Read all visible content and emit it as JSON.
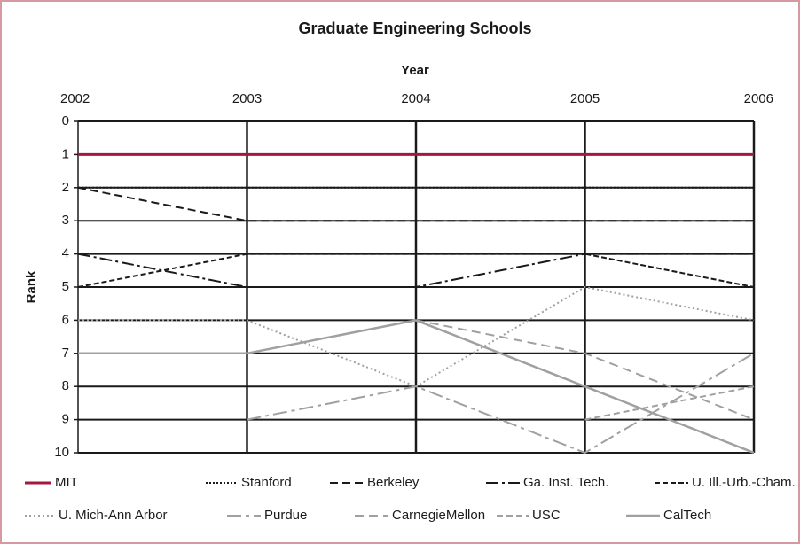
{
  "chart_data": {
    "type": "line",
    "title": "Graduate Engineering Schools",
    "x_label": "Year",
    "y_label": "Rank",
    "x": [
      2002,
      2003,
      2004,
      2005,
      2006
    ],
    "xlim": [
      2002,
      2006
    ],
    "xticks": [
      2002,
      2003,
      2004,
      2005,
      2006
    ],
    "ylim": [
      0,
      10
    ],
    "yticks": [
      0,
      1,
      2,
      3,
      4,
      5,
      6,
      7,
      8,
      9,
      10
    ],
    "y_inverted": true,
    "grid": true,
    "legend": "bottom",
    "series": [
      {
        "name": "MIT",
        "color": "#a3183c",
        "values": [
          1,
          1,
          1,
          1,
          1
        ]
      },
      {
        "name": "Stanford",
        "color": "#1a1a1a",
        "values": [
          2,
          2,
          2,
          2,
          2
        ]
      },
      {
        "name": "Berkeley",
        "color": "#1a1a1a",
        "values": [
          2,
          3,
          3,
          3,
          3
        ]
      },
      {
        "name": "Ga. Inst. Tech.",
        "color": "#1a1a1a",
        "values": [
          4,
          5,
          5,
          4,
          4
        ]
      },
      {
        "name": "U. Ill.-Urb.-Cham.",
        "color": "#1a1a1a",
        "values": [
          5,
          4,
          4,
          4,
          5
        ]
      },
      {
        "name": "U. Mich-Ann Arbor",
        "color": "#a0a0a0",
        "values": [
          6,
          6,
          8,
          5,
          6
        ]
      },
      {
        "name": "Purdue",
        "color": "#a0a0a0",
        "values": [
          null,
          9,
          8,
          10,
          7
        ]
      },
      {
        "name": "CarnegieMellon",
        "color": "#a0a0a0",
        "values": [
          null,
          null,
          6,
          7,
          9
        ]
      },
      {
        "name": "USC",
        "color": "#a0a0a0",
        "values": [
          null,
          null,
          null,
          9,
          8
        ]
      },
      {
        "name": "CalTech",
        "color": "#a0a0a0",
        "values": [
          7,
          7,
          6,
          8,
          10
        ]
      }
    ]
  }
}
